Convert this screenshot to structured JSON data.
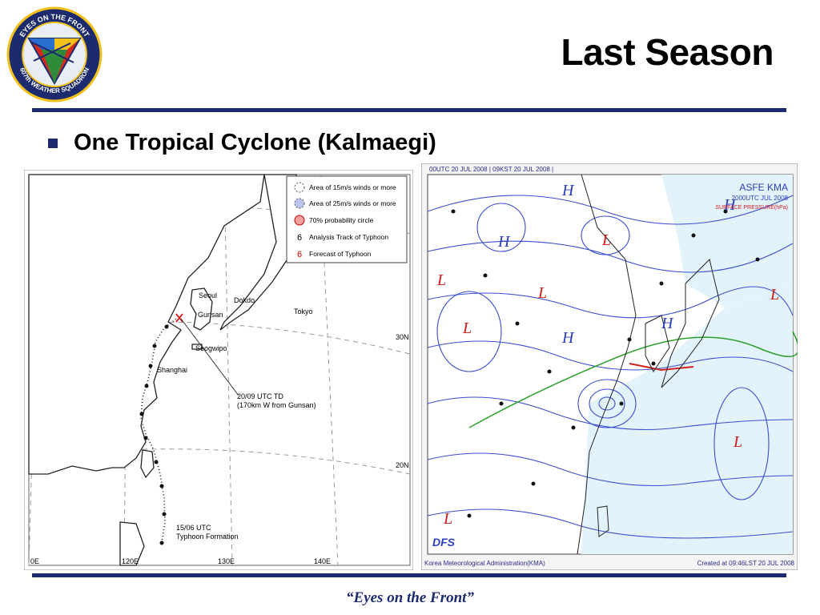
{
  "slide": {
    "title": "Last Season",
    "bullet": "One Tropical Cyclone (Kalmaegi)",
    "footer": "“Eyes on the Front”"
  },
  "logo": {
    "top_arc": "EYES ON THE FRONT",
    "bottom_arc": "607th WEATHER SQUADRON",
    "colors": {
      "ring": "#1c2a6e",
      "red": "#d42a1e",
      "yellow": "#f2c21a",
      "blue": "#2a6fcf",
      "green": "#2e8b3a"
    }
  },
  "track_map": {
    "legend": [
      {
        "icon": "dashed-circle",
        "label": "Area of 15m/s winds or more"
      },
      {
        "icon": "filled-blue-circle",
        "label": "Area of 25m/s winds or more"
      },
      {
        "icon": "red-circle",
        "label": "70% probability circle"
      },
      {
        "icon": "black-typhoon-symbol",
        "label": "Analysis Track of Typhoon"
      },
      {
        "icon": "red-typhoon-symbol",
        "label": "Forecast of Typhoon"
      }
    ],
    "places": {
      "seoul": "Seoul",
      "dokdo": "Dokdo",
      "gunsan": "Gunsan",
      "tokyo": "Tokyo",
      "seogwipo": "Seogwipo",
      "shanghai": "Shanghai"
    },
    "annotations": {
      "td_line1": "20/09 UTC TD",
      "td_line2": "(170km W from Gunsan)",
      "formation_line1": "15/06 UTC",
      "formation_line2": "Typhoon Formation"
    },
    "lat_labels": {
      "n30": "30N",
      "n20": "20N"
    },
    "lon_labels": {
      "e110": "0E",
      "e120": "120E",
      "e130": "130E",
      "e140": "140E"
    }
  },
  "surface_chart": {
    "header_left": "00UTC 20 JUL 2008 | 09KST 20 JUL 2008 |",
    "title_line1": "ASFE  KMA",
    "title_line2": "2000UTC JUL 2008",
    "title_line3": "SURFACE PRESSURE(hPa)",
    "logo_text": "DFS",
    "footer_left": "Korea Meteorological Administration(KMA)",
    "footer_right": "Created at 09:46LST 20 JUL 2008",
    "symbols": {
      "high": "H",
      "low": "L"
    }
  }
}
